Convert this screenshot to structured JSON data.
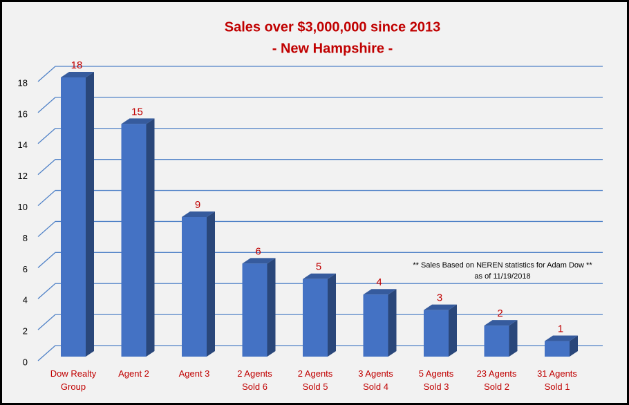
{
  "chart_data": {
    "type": "bar3d",
    "title": "Sales over $3,000,000 since 2013",
    "subtitle": "- New Hampshire -",
    "annotation": [
      "** Sales Based on NEREN statistics for Adam Dow **",
      "as of 11/19/2018"
    ],
    "categories": [
      "Dow Realty Group",
      "Agent 2",
      "Agent 3",
      "2 Agents Sold 6",
      "2 Agents Sold 5",
      "3 Agents Sold 4",
      "5 Agents Sold 3",
      "23 Agents Sold 2",
      "31 Agents Sold 1"
    ],
    "values": [
      18,
      15,
      9,
      6,
      5,
      4,
      3,
      2,
      1
    ],
    "color": "#4472c4",
    "ylim": [
      0,
      18
    ],
    "yticks": [
      0,
      2,
      4,
      6,
      8,
      10,
      12,
      14,
      16,
      18
    ],
    "grid": true
  }
}
